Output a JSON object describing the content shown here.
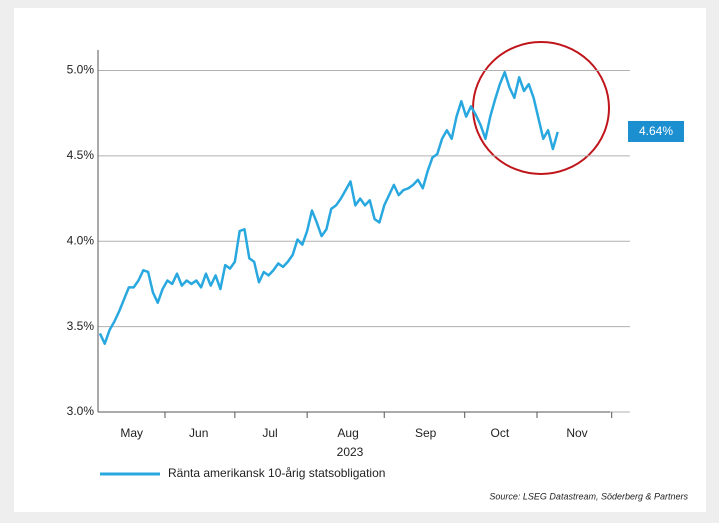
{
  "chart_data": {
    "type": "line",
    "xlabel": "2023",
    "xlim": [
      -0.4,
      110
    ],
    "xticks": [
      {
        "value": 6.6,
        "label": "May"
      },
      {
        "value": 20.5,
        "label": "Jun"
      },
      {
        "value": 35.3,
        "label": "Jul"
      },
      {
        "value": 51.5,
        "label": "Aug"
      },
      {
        "value": 67.6,
        "label": "Sep"
      },
      {
        "value": 83,
        "label": "Oct"
      },
      {
        "value": 99,
        "label": "Nov"
      }
    ],
    "minor_xticks": [
      13.5,
      28,
      43,
      59,
      75.7,
      90.7,
      106.2
    ],
    "ylim": [
      3,
      5.12
    ],
    "yticks": [
      {
        "value": 3,
        "label": "3.0%"
      },
      {
        "value": 3.5,
        "label": "3.5%"
      },
      {
        "value": 4,
        "label": "4.0%"
      },
      {
        "value": 4.5,
        "label": "4.5%"
      },
      {
        "value": 5,
        "label": "5.0%"
      }
    ],
    "grid": true,
    "series": [
      {
        "name": "Ränta amerikansk 10-årig statsobligation",
        "color": "#29a8e0",
        "values": [
          3.46,
          3.4,
          3.48,
          3.53,
          3.59,
          3.66,
          3.73,
          3.73,
          3.77,
          3.83,
          3.82,
          3.7,
          3.64,
          3.72,
          3.77,
          3.75,
          3.81,
          3.74,
          3.77,
          3.75,
          3.77,
          3.73,
          3.81,
          3.74,
          3.8,
          3.72,
          3.86,
          3.84,
          3.88,
          4.06,
          4.07,
          3.9,
          3.88,
          3.76,
          3.82,
          3.8,
          3.83,
          3.87,
          3.85,
          3.88,
          3.92,
          4.01,
          3.98,
          4.06,
          4.18,
          4.11,
          4.03,
          4.07,
          4.19,
          4.21,
          4.25,
          4.3,
          4.35,
          4.21,
          4.25,
          4.21,
          4.24,
          4.13,
          4.11,
          4.21,
          4.27,
          4.33,
          4.27,
          4.3,
          4.31,
          4.33,
          4.36,
          4.31,
          4.41,
          4.49,
          4.51,
          4.6,
          4.65,
          4.6,
          4.73,
          4.82,
          4.73,
          4.79,
          4.74,
          4.68,
          4.6,
          4.73,
          4.83,
          4.92,
          4.99,
          4.9,
          4.84,
          4.96,
          4.88,
          4.92,
          4.84,
          4.72,
          4.6,
          4.65,
          4.54,
          4.64
        ]
      }
    ],
    "end_label": "4.64%",
    "end_label_color": "#1b8fd0",
    "source": "Source: LSEG Datastream, Söderberg & Partners"
  }
}
